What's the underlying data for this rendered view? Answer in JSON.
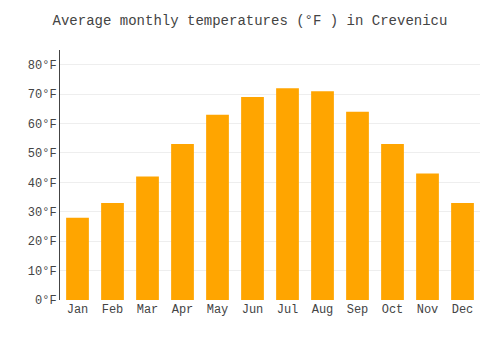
{
  "chart_data": {
    "type": "bar",
    "title": "Average monthly temperatures (°F ) in Crevenicu",
    "categories": [
      "Jan",
      "Feb",
      "Mar",
      "Apr",
      "May",
      "Jun",
      "Jul",
      "Aug",
      "Sep",
      "Oct",
      "Nov",
      "Dec"
    ],
    "values": [
      28,
      33,
      42,
      53,
      63,
      69,
      72,
      71,
      64,
      53,
      43,
      33
    ],
    "color": "#FFA500",
    "ylim": [
      0,
      85
    ],
    "yticks": [
      {
        "value": 0,
        "label": "0°F"
      },
      {
        "value": 10,
        "label": "10°F"
      },
      {
        "value": 20,
        "label": "20°F"
      },
      {
        "value": 30,
        "label": "30°F"
      },
      {
        "value": 40,
        "label": "40°F"
      },
      {
        "value": 50,
        "label": "50°F"
      },
      {
        "value": 60,
        "label": "60°F"
      },
      {
        "value": 70,
        "label": "70°F"
      },
      {
        "value": 80,
        "label": "80°F"
      }
    ],
    "grid": true
  }
}
